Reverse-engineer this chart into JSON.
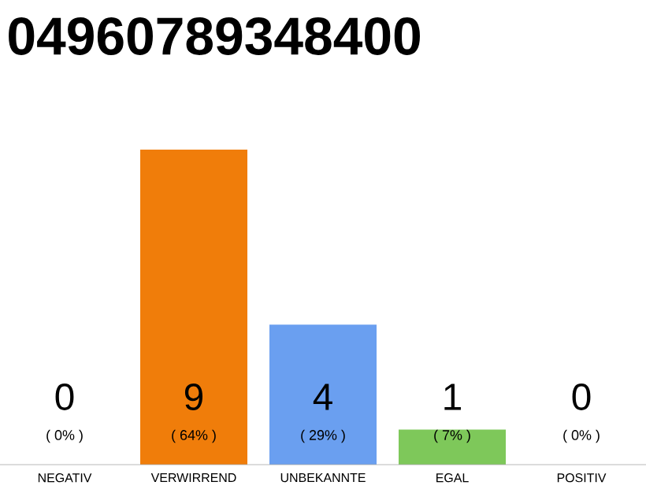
{
  "chart_data": {
    "type": "bar",
    "title": "04960789348400",
    "categories": [
      "NEGATIV",
      "VERWIRREND",
      "UNBEKANNTE",
      "EGAL",
      "POSITIV"
    ],
    "values": [
      0,
      9,
      4,
      1,
      0
    ],
    "colors": [
      "#a0a0a0",
      "#f07d0a",
      "#6a9ff0",
      "#7ec85a",
      "#a0a0a0"
    ],
    "data_labels": true,
    "annotations": [
      "( 0% )",
      "( 64% )",
      "( 29% )",
      "( 7% )",
      "( 0% )"
    ]
  }
}
